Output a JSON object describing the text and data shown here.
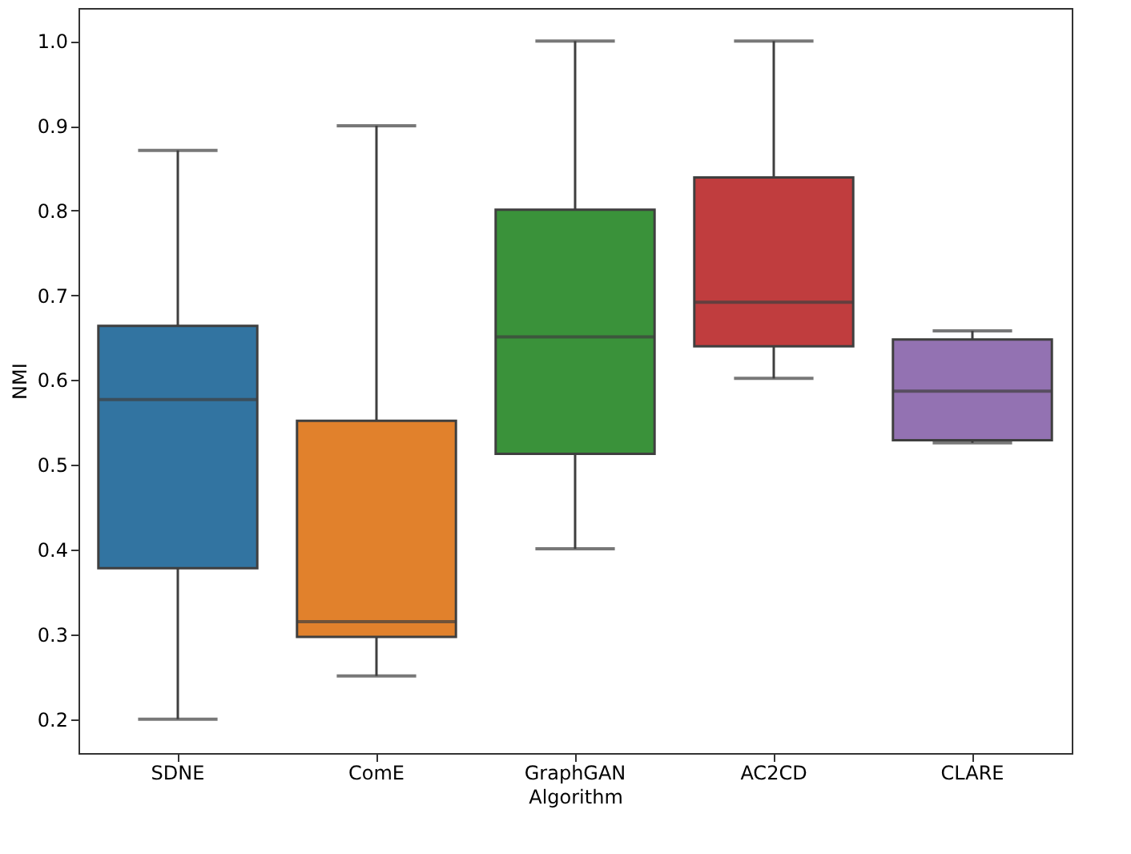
{
  "chart_data": {
    "type": "box",
    "xlabel": "Algorithm",
    "ylabel": "NMI",
    "categories": [
      "SDNE",
      "ComE",
      "GraphGAN",
      "AC2CD",
      "CLARE"
    ],
    "colors": [
      "#3274a1",
      "#e1812c",
      "#3a923a",
      "#c03d3e",
      "#9372b2"
    ],
    "boxes": [
      {
        "low": 0.2,
        "q1": 0.378,
        "median": 0.577,
        "q3": 0.664,
        "high": 0.871
      },
      {
        "low": 0.251,
        "q1": 0.297,
        "median": 0.315,
        "q3": 0.552,
        "high": 0.9
      },
      {
        "low": 0.401,
        "q1": 0.513,
        "median": 0.651,
        "q3": 0.801,
        "high": 1.0
      },
      {
        "low": 0.602,
        "q1": 0.64,
        "median": 0.692,
        "q3": 0.839,
        "high": 1.0
      },
      {
        "low": 0.526,
        "q1": 0.529,
        "median": 0.587,
        "q3": 0.648,
        "high": 0.658
      }
    ],
    "ylim": [
      0.16,
      1.039
    ],
    "yticks": [
      0.2,
      0.3,
      0.4,
      0.5,
      0.6,
      0.7,
      0.8,
      0.9,
      {
        "value": 1.0,
        "label": "1.0"
      }
    ],
    "grid": false
  }
}
